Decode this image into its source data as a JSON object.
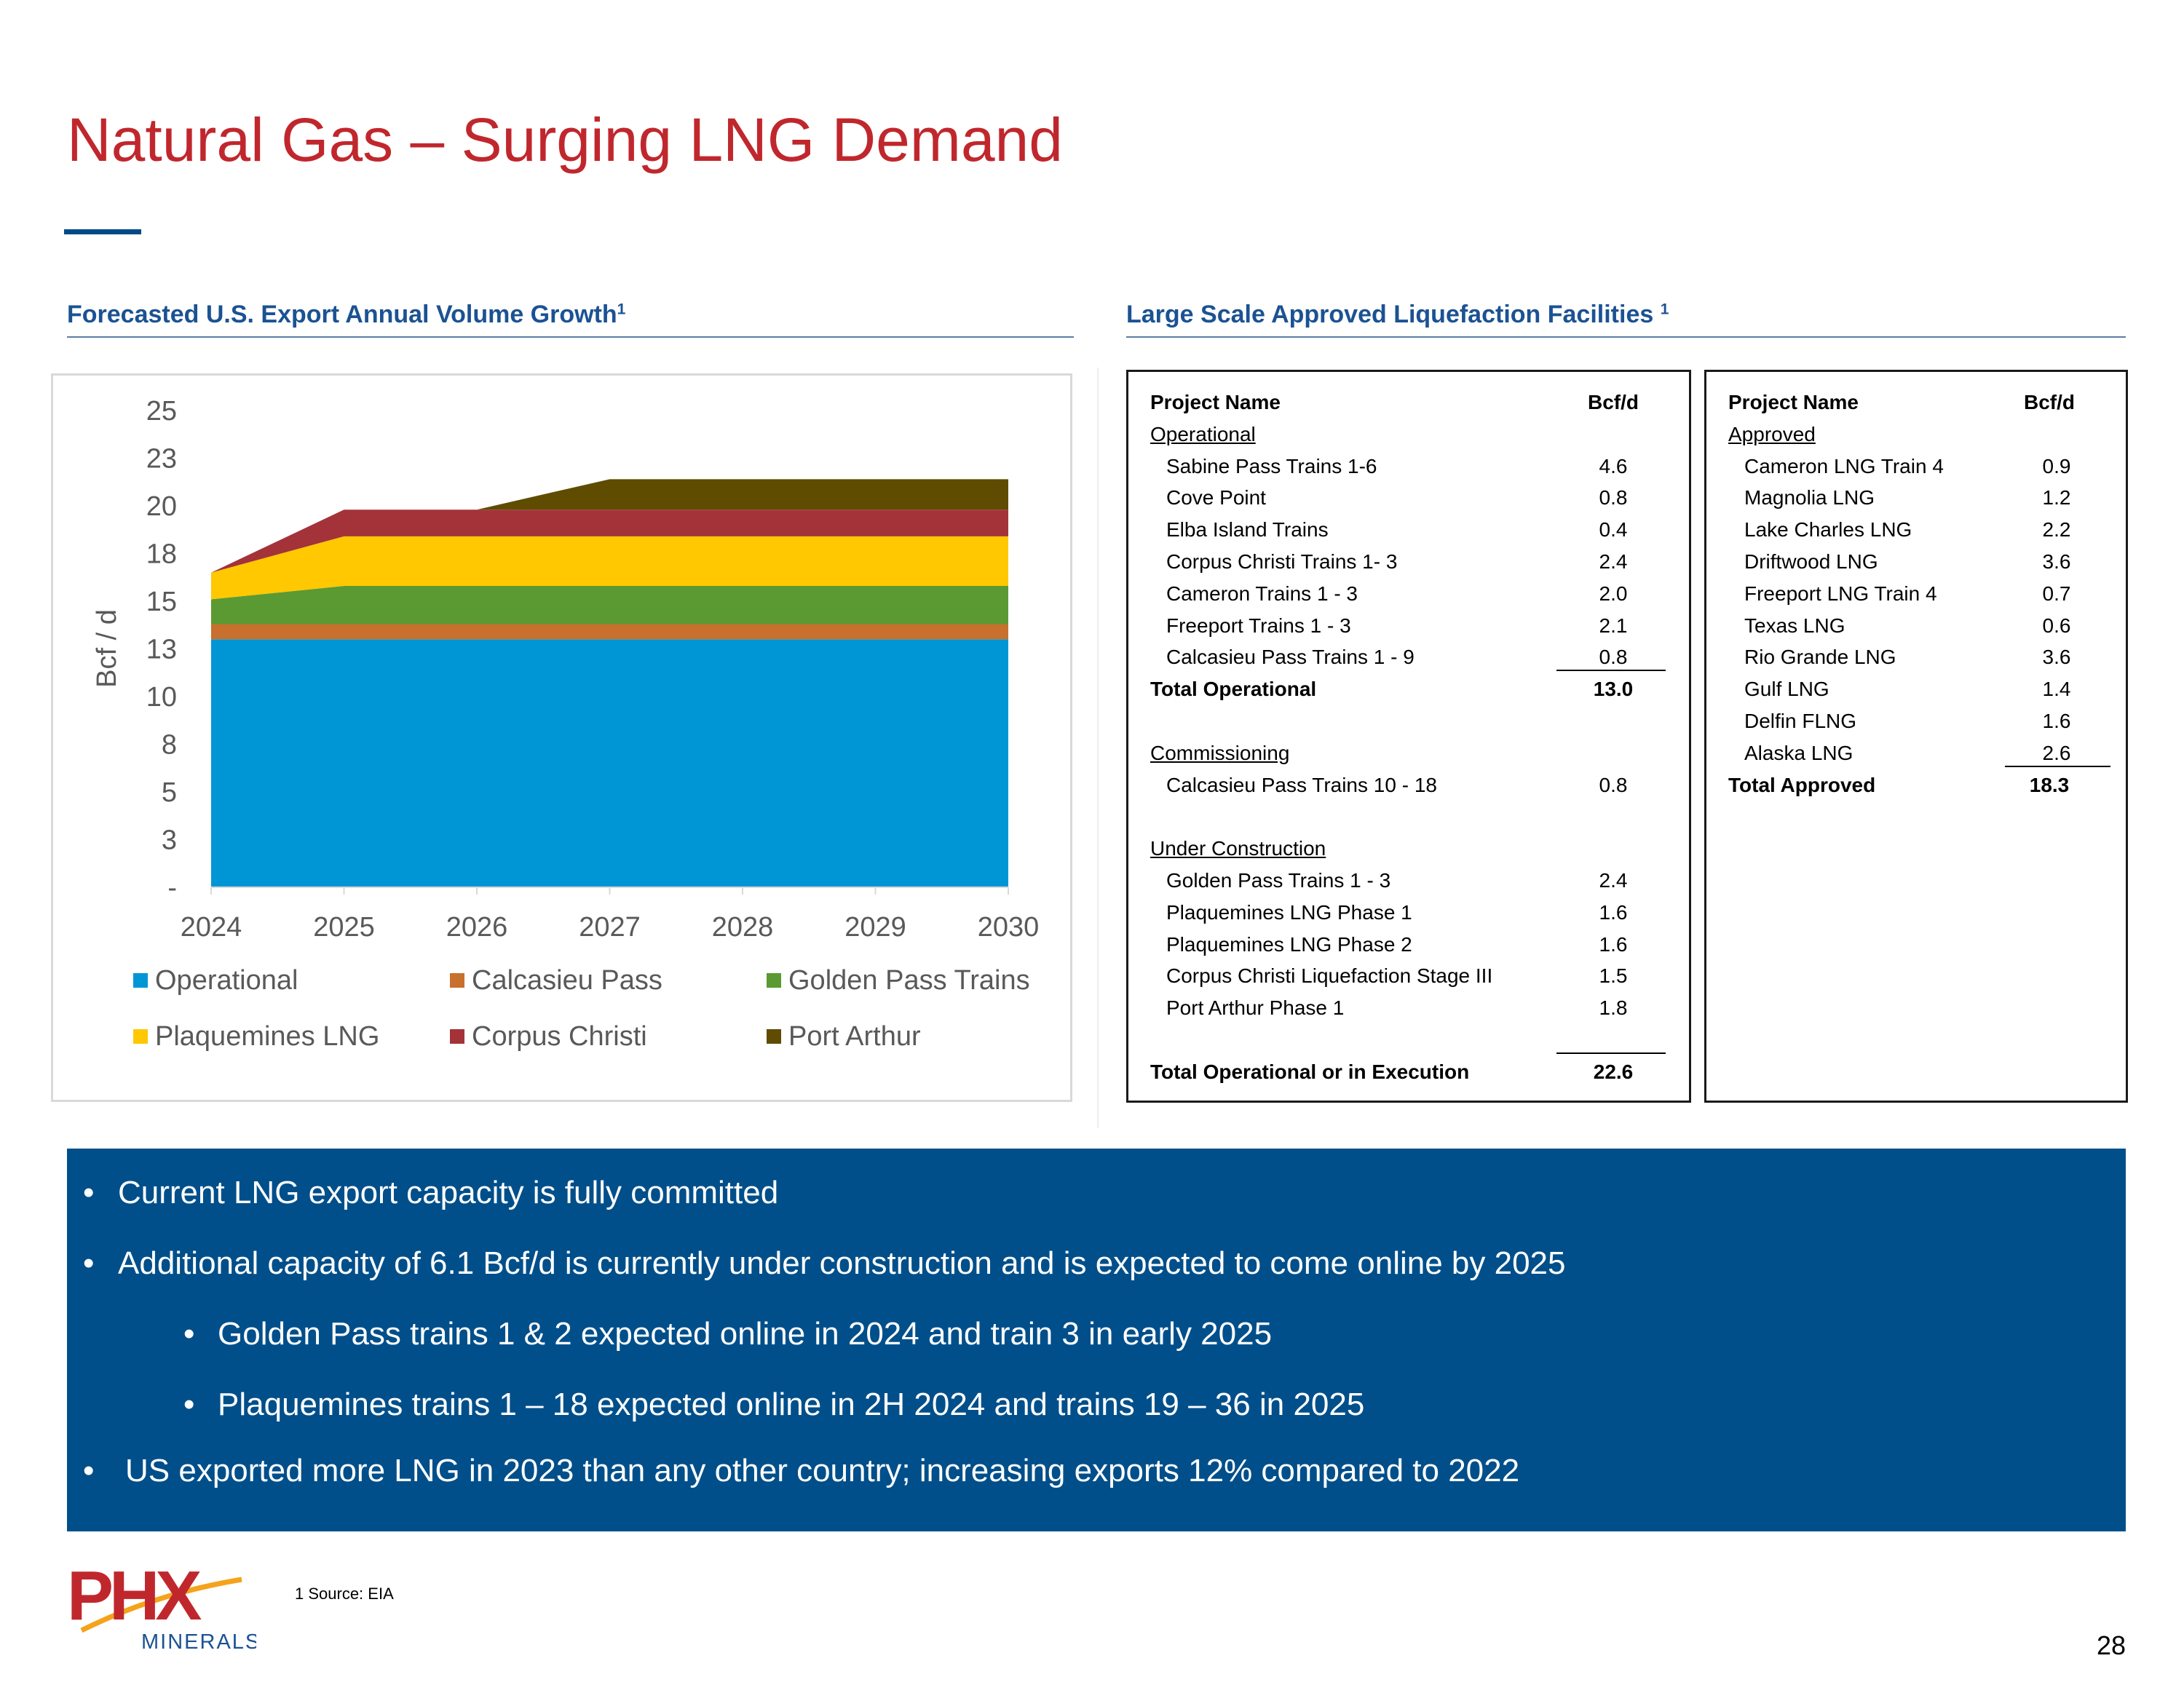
{
  "title": "Natural Gas – Surging LNG Demand",
  "left_section": {
    "title": "Forecasted U.S. Export Annual Volume Growth",
    "sup": "1"
  },
  "right_section": {
    "title": "Large Scale Approved Liquefaction Facilities",
    "sup": "1"
  },
  "colors": {
    "title_red": "#c0272d",
    "brand_blue": "#004f8a",
    "section_blue": "#1b5293"
  },
  "chart_data": {
    "type": "area",
    "stacked": true,
    "title": "",
    "xlabel": "",
    "ylabel": "Bcf / d",
    "x": [
      "2024",
      "2025",
      "2026",
      "2027",
      "2028",
      "2029",
      "2030"
    ],
    "y_ticks": [
      "-",
      "3",
      "5",
      "8",
      "10",
      "13",
      "15",
      "18",
      "20",
      "23",
      "25"
    ],
    "y_tick_values": [
      0,
      2.5,
      5,
      7.5,
      10,
      12.5,
      15,
      17.5,
      20,
      22.5,
      25
    ],
    "ylim": [
      0,
      26
    ],
    "series": [
      {
        "name": "Operational",
        "color": "#0096d6",
        "values": [
          13.0,
          13.0,
          13.0,
          13.0,
          13.0,
          13.0,
          13.0
        ]
      },
      {
        "name": "Calcasieu Pass",
        "color": "#c8702e",
        "values": [
          0.8,
          0.8,
          0.8,
          0.8,
          0.8,
          0.8,
          0.8
        ]
      },
      {
        "name": "Golden Pass Trains",
        "color": "#5b9a32",
        "values": [
          1.3,
          2.0,
          2.0,
          2.0,
          2.0,
          2.0,
          2.0
        ]
      },
      {
        "name": "Plaquemines LNG",
        "color": "#ffc800",
        "values": [
          1.4,
          2.6,
          2.6,
          2.6,
          2.6,
          2.6,
          2.6
        ]
      },
      {
        "name": "Corpus Christi",
        "color": "#a33339",
        "values": [
          0.0,
          1.4,
          1.4,
          1.4,
          1.4,
          1.4,
          1.4
        ]
      },
      {
        "name": "Port Arthur",
        "color": "#5f4c00",
        "values": [
          0.0,
          0.0,
          0.0,
          1.6,
          1.6,
          1.6,
          1.6
        ]
      }
    ],
    "legend": [
      [
        "Operational",
        "Calcasieu Pass",
        "Golden Pass Trains"
      ],
      [
        "Plaquemines LNG",
        "Corpus Christi",
        "Port Arthur"
      ]
    ]
  },
  "table1": {
    "header": {
      "name": "Project Name",
      "value": "Bcf/d"
    },
    "operational_label": "Operational",
    "operational": [
      {
        "name": "Sabine Pass Trains 1-6",
        "value": "4.6"
      },
      {
        "name": "Cove Point",
        "value": "0.8"
      },
      {
        "name": "Elba Island Trains",
        "value": "0.4"
      },
      {
        "name": "Corpus Christi Trains 1- 3",
        "value": "2.4"
      },
      {
        "name": "Cameron Trains 1 - 3",
        "value": "2.0"
      },
      {
        "name": "Freeport Trains 1 - 3",
        "value": "2.1"
      },
      {
        "name": "Calcasieu Pass Trains 1 - 9",
        "value": "0.8"
      }
    ],
    "total_operational": {
      "name": "Total Operational",
      "value": "13.0"
    },
    "commissioning_label": "Commissioning",
    "commissioning": [
      {
        "name": "Calcasieu Pass Trains 10 - 18",
        "value": "0.8"
      }
    ],
    "construction_label": "Under Construction",
    "construction": [
      {
        "name": "Golden Pass Trains 1 - 3",
        "value": "2.4"
      },
      {
        "name": "Plaquemines LNG Phase 1",
        "value": "1.6"
      },
      {
        "name": "Plaquemines LNG Phase 2",
        "value": "1.6"
      },
      {
        "name": "Corpus Christi Liquefaction Stage III",
        "value": "1.5"
      },
      {
        "name": "Port Arthur Phase 1",
        "value": "1.8"
      }
    ],
    "total_execution": {
      "name": "Total Operational or in Execution",
      "value": "22.6"
    }
  },
  "table2": {
    "header": {
      "name": "Project Name",
      "value": "Bcf/d"
    },
    "approved_label": "Approved",
    "approved": [
      {
        "name": "Cameron LNG Train 4",
        "value": "0.9"
      },
      {
        "name": "Magnolia LNG",
        "value": "1.2"
      },
      {
        "name": "Lake Charles LNG",
        "value": "2.2"
      },
      {
        "name": "Driftwood LNG",
        "value": "3.6"
      },
      {
        "name": "Freeport LNG Train 4",
        "value": "0.7"
      },
      {
        "name": "Texas LNG",
        "value": "0.6"
      },
      {
        "name": "Rio Grande LNG",
        "value": "3.6"
      },
      {
        "name": "Gulf LNG",
        "value": "1.4"
      },
      {
        "name": "Delfin FLNG",
        "value": "1.6"
      },
      {
        "name": "Alaska LNG",
        "value": "2.6"
      }
    ],
    "total_approved": {
      "name": "Total Approved",
      "value": "18.3"
    }
  },
  "bullets": [
    "Current LNG export capacity is fully committed",
    "Additional capacity of 6.1 Bcf/d is currently under construction and is expected to come online by 2025",
    "Golden Pass trains 1 & 2 expected online in 2024 and train 3 in early 2025",
    "Plaquemines trains 1 – 18 expected online in 2H 2024 and trains 19 – 36 in 2025",
    "US exported more LNG in 2023 than any other country; increasing exports 12% compared to 2022"
  ],
  "bullet_char": "•",
  "logo": {
    "text": "PHX",
    "subtext": "MINERALS"
  },
  "footnote": "1 Source: EIA",
  "page_number": "28"
}
